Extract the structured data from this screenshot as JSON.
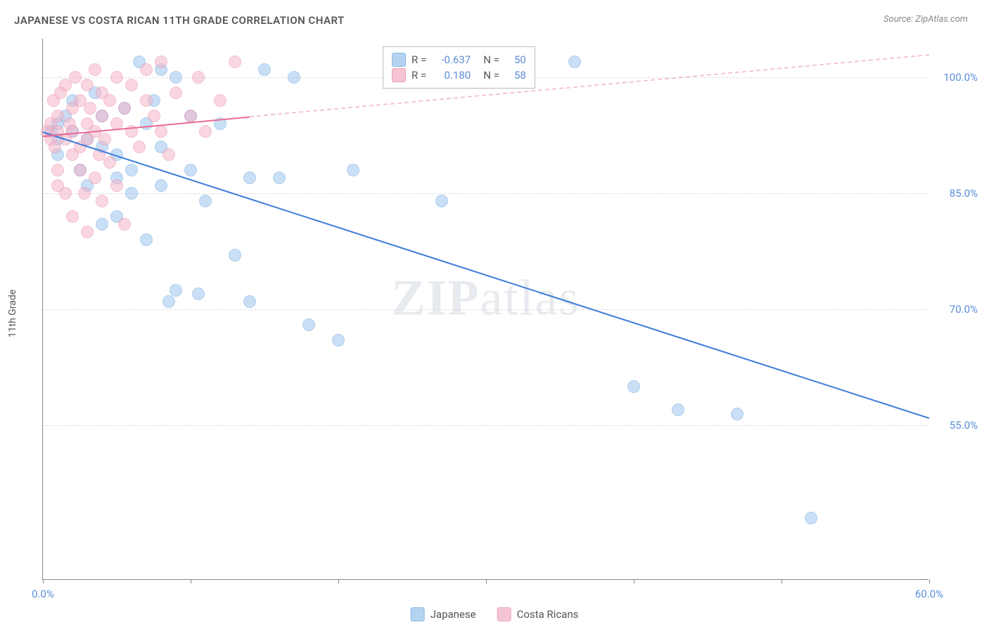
{
  "title": "JAPANESE VS COSTA RICAN 11TH GRADE CORRELATION CHART",
  "source_label": "Source: ZipAtlas.com",
  "y_axis_label": "11th Grade",
  "watermark": "ZIPatlas",
  "chart": {
    "type": "scatter",
    "xlim": [
      0,
      60
    ],
    "ylim": [
      35,
      105
    ],
    "y_ticks": [
      55.0,
      70.0,
      85.0,
      100.0
    ],
    "x_ticks": [
      0,
      10,
      20,
      30,
      40,
      50,
      60
    ],
    "x_tick_labels_shown": {
      "0": "0.0%",
      "60": "60.0%"
    },
    "background_color": "#ffffff",
    "grid_color": "#dddddd",
    "axis_color": "#888888",
    "tick_label_color": "#5b8dd6",
    "series": [
      {
        "name": "Japanese",
        "color_fill": "#9ec5ef",
        "color_stroke": "#6fa8e0",
        "trend_color": "#3b7dd8",
        "R": -0.637,
        "N": 50,
        "trend": {
          "x1": 0,
          "y1": 93,
          "x2": 60,
          "y2": 56
        },
        "points": [
          [
            0.5,
            93
          ],
          [
            1,
            94
          ],
          [
            1,
            92
          ],
          [
            1,
            90
          ],
          [
            1.5,
            95
          ],
          [
            2,
            93
          ],
          [
            2,
            97
          ],
          [
            2.5,
            88
          ],
          [
            3,
            86
          ],
          [
            3,
            92
          ],
          [
            3.5,
            98
          ],
          [
            4,
            95
          ],
          [
            4,
            91
          ],
          [
            4,
            81
          ],
          [
            5,
            90
          ],
          [
            5,
            87
          ],
          [
            5,
            82
          ],
          [
            5.5,
            96
          ],
          [
            6,
            88
          ],
          [
            6,
            85
          ],
          [
            6.5,
            102
          ],
          [
            7,
            94
          ],
          [
            7,
            79
          ],
          [
            7.5,
            97
          ],
          [
            8,
            101
          ],
          [
            8,
            91
          ],
          [
            8,
            86
          ],
          [
            8.5,
            71
          ],
          [
            9,
            100
          ],
          [
            9,
            72.5
          ],
          [
            10,
            95
          ],
          [
            10,
            88
          ],
          [
            10.5,
            72
          ],
          [
            11,
            84
          ],
          [
            12,
            94
          ],
          [
            13,
            77
          ],
          [
            14,
            87
          ],
          [
            14,
            71
          ],
          [
            15,
            101
          ],
          [
            16,
            87
          ],
          [
            17,
            100
          ],
          [
            18,
            68
          ],
          [
            20,
            66
          ],
          [
            21,
            88
          ],
          [
            27,
            84
          ],
          [
            36,
            102
          ],
          [
            40,
            60
          ],
          [
            43,
            57
          ],
          [
            47,
            56.5
          ],
          [
            52,
            43
          ]
        ]
      },
      {
        "name": "Costa Ricans",
        "color_fill": "#f5b5c8",
        "color_stroke": "#e88fae",
        "trend_color": "#e86b94",
        "R": 0.18,
        "N": 58,
        "trend": {
          "x1": 0,
          "y1": 92.5,
          "x2": 14,
          "y2": 95,
          "extrap_x2": 60,
          "extrap_y2": 103
        },
        "points": [
          [
            0.3,
            93
          ],
          [
            0.5,
            92
          ],
          [
            0.5,
            94
          ],
          [
            0.7,
            97
          ],
          [
            0.8,
            91
          ],
          [
            1,
            95
          ],
          [
            1,
            93
          ],
          [
            1,
            88
          ],
          [
            1,
            86
          ],
          [
            1.2,
            98
          ],
          [
            1.5,
            92
          ],
          [
            1.5,
            99
          ],
          [
            1.5,
            85
          ],
          [
            1.8,
            94
          ],
          [
            2,
            96
          ],
          [
            2,
            93
          ],
          [
            2,
            90
          ],
          [
            2,
            82
          ],
          [
            2.2,
            100
          ],
          [
            2.5,
            97
          ],
          [
            2.5,
            91
          ],
          [
            2.5,
            88
          ],
          [
            2.8,
            85
          ],
          [
            3,
            94
          ],
          [
            3,
            99
          ],
          [
            3,
            92
          ],
          [
            3,
            80
          ],
          [
            3.2,
            96
          ],
          [
            3.5,
            101
          ],
          [
            3.5,
            93
          ],
          [
            3.5,
            87
          ],
          [
            3.8,
            90
          ],
          [
            4,
            98
          ],
          [
            4,
            95
          ],
          [
            4,
            84
          ],
          [
            4.2,
            92
          ],
          [
            4.5,
            97
          ],
          [
            4.5,
            89
          ],
          [
            5,
            100
          ],
          [
            5,
            94
          ],
          [
            5,
            86
          ],
          [
            5.5,
            96
          ],
          [
            5.5,
            81
          ],
          [
            6,
            93
          ],
          [
            6,
            99
          ],
          [
            6.5,
            91
          ],
          [
            7,
            97
          ],
          [
            7,
            101
          ],
          [
            7.5,
            95
          ],
          [
            8,
            102
          ],
          [
            8,
            93
          ],
          [
            8.5,
            90
          ],
          [
            9,
            98
          ],
          [
            10,
            95
          ],
          [
            10.5,
            100
          ],
          [
            11,
            93
          ],
          [
            12,
            97
          ],
          [
            13,
            102
          ]
        ]
      }
    ]
  },
  "top_legend": {
    "rows": [
      {
        "swatch_class": "s0",
        "R_label": "R =",
        "R_val": "-0.637",
        "N_label": "N =",
        "N_val": "50"
      },
      {
        "swatch_class": "s1",
        "R_label": "R =",
        "R_val": "0.180",
        "N_label": "N =",
        "N_val": "58"
      }
    ]
  },
  "bottom_legend": {
    "items": [
      {
        "swatch_class": "s0",
        "label": "Japanese"
      },
      {
        "swatch_class": "s1",
        "label": "Costa Ricans"
      }
    ]
  }
}
